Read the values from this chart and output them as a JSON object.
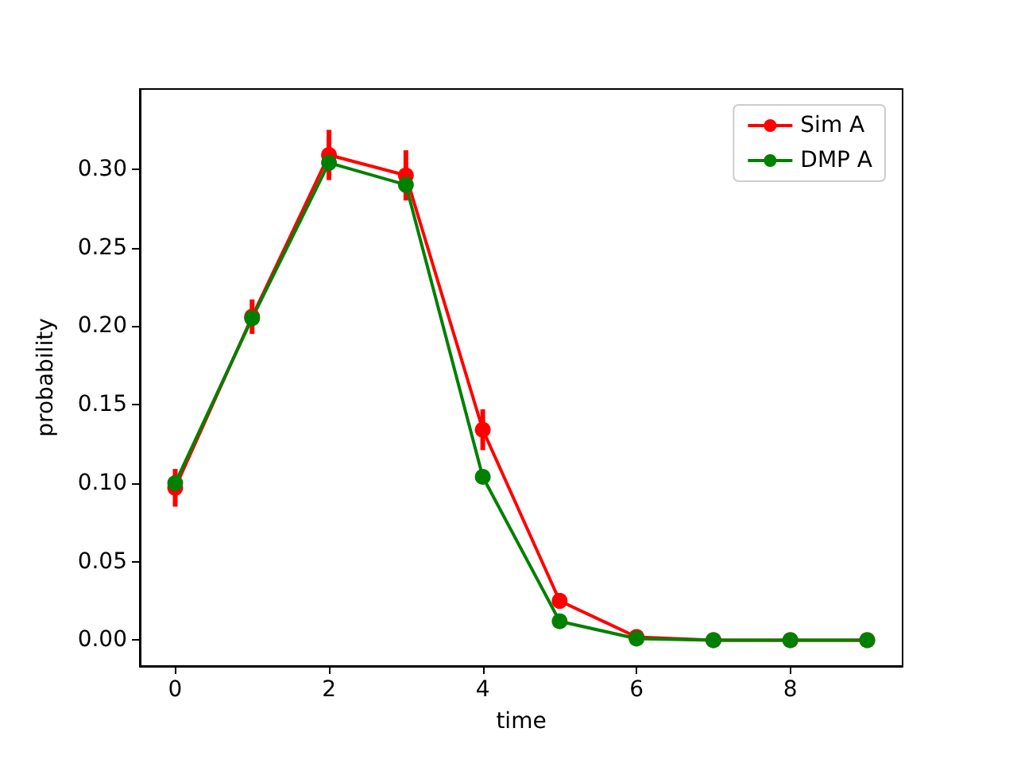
{
  "chart_data": {
    "type": "line",
    "xlabel": "time",
    "ylabel": "probability",
    "x": [
      0,
      1,
      2,
      3,
      4,
      5,
      6,
      7,
      8,
      9
    ],
    "series": [
      {
        "name": "Sim A",
        "color": "#ff0000",
        "values": [
          0.097,
          0.206,
          0.309,
          0.296,
          0.134,
          0.025,
          0.002,
          0,
          0,
          0
        ],
        "errors": [
          0.012,
          0.011,
          0.016,
          0.016,
          0.013,
          0.005,
          null,
          null,
          null,
          null
        ]
      },
      {
        "name": "DMP A",
        "color": "#008000",
        "values": [
          0.1,
          0.205,
          0.304,
          0.29,
          0.104,
          0.012,
          0.001,
          0,
          0,
          0
        ]
      }
    ],
    "xlim": [
      -0.46,
      9.46
    ],
    "xticks": [
      0,
      2,
      4,
      6,
      8
    ],
    "ylim": [
      -0.0165,
      0.351
    ],
    "yticks": [
      {
        "value": 0,
        "label": "0.00"
      },
      0.05,
      {
        "value": 0.1,
        "label": "0.10"
      },
      0.15,
      {
        "value": 0.2,
        "label": "0.20"
      },
      0.25,
      {
        "value": 0.3,
        "label": "0.30"
      }
    ],
    "marker": "circle",
    "line_style": "solid",
    "grid": false,
    "legend": "top right"
  }
}
